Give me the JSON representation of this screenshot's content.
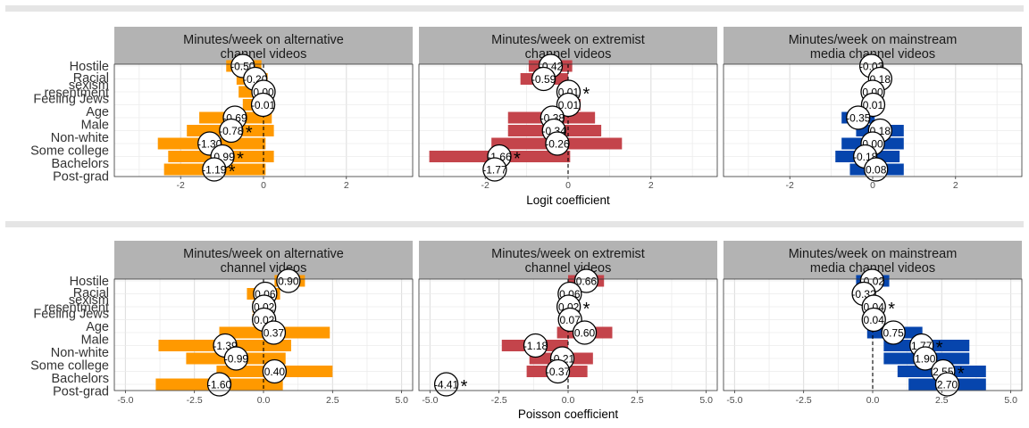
{
  "colors": {
    "alternative": "#FF9900",
    "extremist": "#C4444B",
    "mainstream": "#0645AD",
    "strip_bg": "#B3B3B3",
    "separator": "#E5E5E5"
  },
  "chart_data": [
    {
      "type": "bar",
      "model": "logit",
      "xlabel": "Logit coefficient",
      "xlim": [
        -3.6,
        3.6
      ],
      "xticks": [
        -2,
        0,
        2
      ],
      "categories": [
        "Hostile",
        "Racial sexism resentment",
        "Feeling Jews",
        "Age",
        "Male",
        "Non-white",
        "Some college",
        "Bachelors",
        "Post-grad"
      ],
      "category_labels": [
        "Hostile",
        "Racial",
        "sexism",
        "resentment",
        "Feeling Jews",
        "Age",
        "Male",
        "Non-white",
        "Some college",
        "Bachelors",
        "Post-grad"
      ],
      "panels": [
        {
          "title": [
            "Minutes/week on alternative",
            "channel videos"
          ],
          "color_key": "alternative",
          "rows": [
            {
              "estimate": -0.5,
              "label": "-0.50",
              "lower": -0.9,
              "upper": -0.05,
              "star": false
            },
            {
              "estimate": -0.2,
              "label": "-0.20",
              "lower": -0.65,
              "upper": 0.1,
              "star": false
            },
            {
              "estimate": 0.0,
              "label": "0.00",
              "lower": -0.6,
              "upper": 0.05,
              "star": false
            },
            {
              "estimate": -0.01,
              "label": "-0.01",
              "lower": -0.5,
              "upper": 0.1,
              "star": false
            },
            {
              "estimate": -0.69,
              "label": "-0.69",
              "lower": -1.55,
              "upper": 0.2,
              "star": false
            },
            {
              "estimate": -0.78,
              "label": "-0.78",
              "lower": -1.85,
              "upper": 0.25,
              "star": true
            },
            {
              "estimate": -1.3,
              "label": "-1.30",
              "lower": -2.55,
              "upper": 0.05,
              "star": false
            },
            {
              "estimate": -0.99,
              "label": "-0.99",
              "lower": -2.3,
              "upper": 0.25,
              "star": true
            },
            {
              "estimate": -1.19,
              "label": "-1.19",
              "lower": -2.4,
              "upper": 0.05,
              "star": true
            }
          ]
        },
        {
          "title": [
            "Minutes/week on extremist",
            "channel videos"
          ],
          "color_key": "extremist",
          "rows": [
            {
              "estimate": -0.42,
              "label": "-0.42",
              "lower": -0.95,
              "upper": 0.1,
              "star": false
            },
            {
              "estimate": -0.59,
              "label": "-0.59",
              "lower": -1.15,
              "upper": 0.0,
              "star": false
            },
            {
              "estimate": 0.01,
              "label": "0.01",
              "lower": -0.1,
              "upper": 0.25,
              "star": true
            },
            {
              "estimate": 0.01,
              "label": "0.01",
              "lower": -0.25,
              "upper": 0.3,
              "star": false
            },
            {
              "estimate": -0.38,
              "label": "-0.38",
              "lower": -1.45,
              "upper": 0.65,
              "star": false
            },
            {
              "estimate": -0.34,
              "label": "-0.34",
              "lower": -1.45,
              "upper": 0.8,
              "star": false
            },
            {
              "estimate": -0.26,
              "label": "-0.26",
              "lower": -1.85,
              "upper": 1.3,
              "star": false
            },
            {
              "estimate": -1.66,
              "label": "-1.66",
              "lower": -3.35,
              "upper": 0.05,
              "star": true
            },
            {
              "estimate": -1.77,
              "label": "-1.77",
              "lower": -1.95,
              "upper": -1.55,
              "star": false
            }
          ]
        },
        {
          "title": [
            "Minutes/week on mainstream",
            "media channel videos"
          ],
          "color_key": "mainstream",
          "rows": [
            {
              "estimate": -0.03,
              "label": "-0.03",
              "lower": -0.3,
              "upper": 0.2,
              "star": false
            },
            {
              "estimate": 0.18,
              "label": "0.18",
              "lower": -0.1,
              "upper": 0.4,
              "star": false
            },
            {
              "estimate": 0.0,
              "label": "0.00",
              "lower": -0.2,
              "upper": 0.2,
              "star": false
            },
            {
              "estimate": 0.01,
              "label": "0.01",
              "lower": -0.2,
              "upper": 0.2,
              "star": false
            },
            {
              "estimate": -0.35,
              "label": "-0.35",
              "lower": -0.75,
              "upper": 0.05,
              "star": false
            },
            {
              "estimate": 0.18,
              "label": "0.18",
              "lower": -0.4,
              "upper": 0.75,
              "star": false
            },
            {
              "estimate": 0.0,
              "label": "0.00",
              "lower": -0.75,
              "upper": 0.75,
              "star": false
            },
            {
              "estimate": -0.18,
              "label": "-0.18",
              "lower": -0.9,
              "upper": 0.65,
              "star": false
            },
            {
              "estimate": 0.08,
              "label": "0.08",
              "lower": -0.55,
              "upper": 0.75,
              "star": false
            }
          ]
        }
      ]
    },
    {
      "type": "bar",
      "model": "poisson",
      "xlabel": "Poisson coefficient",
      "xlim": [
        -5.4,
        5.4
      ],
      "xticks": [
        -5.0,
        -2.5,
        0.0,
        2.5,
        5.0
      ],
      "categories": [
        "Hostile",
        "Racial sexism resentment",
        "Feeling Jews",
        "Age",
        "Male",
        "Non-white",
        "Some college",
        "Bachelors",
        "Post-grad"
      ],
      "category_labels": [
        "Hostile",
        "Racial",
        "sexism",
        "resentment",
        "Feeling Jews",
        "Age",
        "Male",
        "Non-white",
        "Some college",
        "Bachelors",
        "Post-grad"
      ],
      "panels": [
        {
          "title": [
            "Minutes/week on alternative",
            "channel videos"
          ],
          "color_key": "alternative",
          "rows": [
            {
              "estimate": 0.9,
              "label": "0.90",
              "lower": 0.4,
              "upper": 1.5,
              "star": false
            },
            {
              "estimate": 0.06,
              "label": "0.06",
              "lower": -0.6,
              "upper": 0.6,
              "star": false
            },
            {
              "estimate": 0.02,
              "label": "0.02",
              "lower": -0.4,
              "upper": 0.4,
              "star": false
            },
            {
              "estimate": 0.02,
              "label": "0.02",
              "lower": -0.4,
              "upper": 0.4,
              "star": false
            },
            {
              "estimate": 0.37,
              "label": "0.37",
              "lower": -1.6,
              "upper": 2.4,
              "star": false
            },
            {
              "estimate": -1.39,
              "label": "-1.39",
              "lower": -3.8,
              "upper": 1.0,
              "star": false
            },
            {
              "estimate": -0.99,
              "label": "-0.99",
              "lower": -2.8,
              "upper": 0.8,
              "star": false
            },
            {
              "estimate": 0.4,
              "label": "0.40",
              "lower": -1.7,
              "upper": 2.5,
              "star": false
            },
            {
              "estimate": -1.6,
              "label": "-1.60",
              "lower": -3.9,
              "upper": 0.7,
              "star": false
            }
          ]
        },
        {
          "title": [
            "Minutes/week on extremist",
            "channel videos"
          ],
          "color_key": "extremist",
          "rows": [
            {
              "estimate": 0.66,
              "label": "0.66",
              "lower": 0.0,
              "upper": 1.3,
              "star": false
            },
            {
              "estimate": 0.06,
              "label": "0.06",
              "lower": -0.3,
              "upper": 0.4,
              "star": false
            },
            {
              "estimate": 0.02,
              "label": "0.02",
              "lower": -0.3,
              "upper": 0.3,
              "star": true
            },
            {
              "estimate": 0.07,
              "label": "0.07",
              "lower": -0.3,
              "upper": 0.4,
              "star": false
            },
            {
              "estimate": 0.6,
              "label": "0.60",
              "lower": -0.4,
              "upper": 1.6,
              "star": false
            },
            {
              "estimate": -1.18,
              "label": "-1.18",
              "lower": -2.4,
              "upper": 0.0,
              "star": false
            },
            {
              "estimate": -0.21,
              "label": "-0.21",
              "lower": -1.4,
              "upper": 0.9,
              "star": false
            },
            {
              "estimate": -0.37,
              "label": "-0.37",
              "lower": -1.5,
              "upper": 0.7,
              "star": false
            },
            {
              "estimate": -4.41,
              "label": "-4.41",
              "lower": -4.6,
              "upper": -4.2,
              "star": true
            }
          ]
        },
        {
          "title": [
            "Minutes/week on mainstream",
            "media channel videos"
          ],
          "color_key": "mainstream",
          "rows": [
            {
              "estimate": -0.02,
              "label": "-0.02",
              "lower": -0.6,
              "upper": 0.6,
              "star": false
            },
            {
              "estimate": -0.32,
              "label": "-0.32",
              "lower": -0.6,
              "upper": 0.0,
              "star": false
            },
            {
              "estimate": 0.04,
              "label": "0.04",
              "lower": -0.3,
              "upper": 0.4,
              "star": true
            },
            {
              "estimate": 0.04,
              "label": "0.04",
              "lower": -0.3,
              "upper": 0.3,
              "star": false
            },
            {
              "estimate": 0.75,
              "label": "0.75",
              "lower": -0.2,
              "upper": 1.8,
              "star": false
            },
            {
              "estimate": 1.77,
              "label": "1.77",
              "lower": 0.4,
              "upper": 3.5,
              "star": true
            },
            {
              "estimate": 1.9,
              "label": "1.90",
              "lower": 0.4,
              "upper": 3.5,
              "star": false
            },
            {
              "estimate": 2.55,
              "label": "2.55",
              "lower": 0.9,
              "upper": 4.1,
              "star": true
            },
            {
              "estimate": 2.7,
              "label": "2.70",
              "lower": 1.3,
              "upper": 4.1,
              "star": false
            }
          ]
        }
      ]
    }
  ]
}
